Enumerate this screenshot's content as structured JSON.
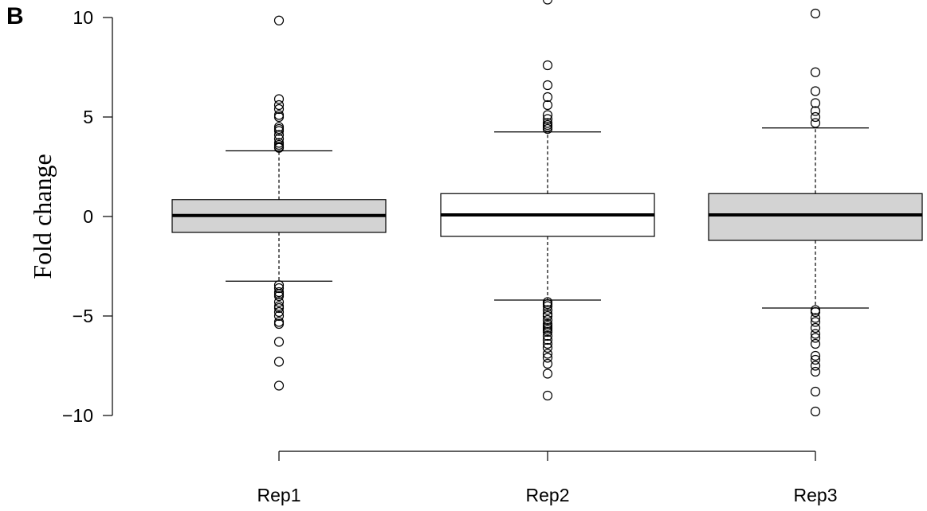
{
  "panel_label": "B",
  "chart_data": {
    "type": "boxplot",
    "ylabel": "Fold change",
    "xlabel": "",
    "ylim": [
      -10,
      10
    ],
    "yticks": [
      -10,
      -5,
      0,
      5,
      10
    ],
    "ytick_labels": [
      "−10",
      "−5",
      "0",
      "5",
      "10"
    ],
    "categories": [
      "Rep1",
      "Rep2",
      "Rep3"
    ],
    "boxes": [
      {
        "label": "Rep1",
        "fill": "#d3d3d3",
        "q1": -0.8,
        "median": 0.05,
        "q3": 0.85,
        "whisker_low": -3.25,
        "whisker_high": 3.3,
        "outliers": [
          9.85,
          5.9,
          5.6,
          5.4,
          5.1,
          5.0,
          4.5,
          4.4,
          4.3,
          4.1,
          3.9,
          3.7,
          3.6,
          3.5,
          3.45,
          -3.45,
          -3.6,
          -3.8,
          -3.9,
          -4.0,
          -4.3,
          -4.5,
          -4.6,
          -4.8,
          -5.0,
          -5.3,
          -5.4,
          -6.3,
          -7.3,
          -8.5
        ]
      },
      {
        "label": "Rep2",
        "fill": "#ffffff",
        "q1": -1.0,
        "median": 0.08,
        "q3": 1.15,
        "whisker_low": -4.2,
        "whisker_high": 4.25,
        "outliers": [
          10.9,
          7.6,
          6.6,
          6.0,
          5.6,
          5.1,
          4.9,
          4.7,
          4.6,
          4.5,
          4.4,
          -4.3,
          -4.4,
          -4.5,
          -4.7,
          -4.9,
          -5.0,
          -5.2,
          -5.4,
          -5.5,
          -5.6,
          -5.7,
          -5.8,
          -6.0,
          -6.2,
          -6.4,
          -6.6,
          -6.9,
          -7.1,
          -7.4,
          -7.9,
          -9.0
        ]
      },
      {
        "label": "Rep3",
        "fill": "#d3d3d3",
        "q1": -1.2,
        "median": 0.08,
        "q3": 1.15,
        "whisker_low": -4.6,
        "whisker_high": 4.45,
        "outliers": [
          10.2,
          7.25,
          6.3,
          5.7,
          5.3,
          5.0,
          4.7,
          -4.7,
          -4.8,
          -5.1,
          -5.3,
          -5.6,
          -5.9,
          -6.1,
          -6.4,
          -7.0,
          -7.2,
          -7.5,
          -7.8,
          -8.8,
          -9.8
        ]
      }
    ],
    "grid": false,
    "legend": "none"
  }
}
